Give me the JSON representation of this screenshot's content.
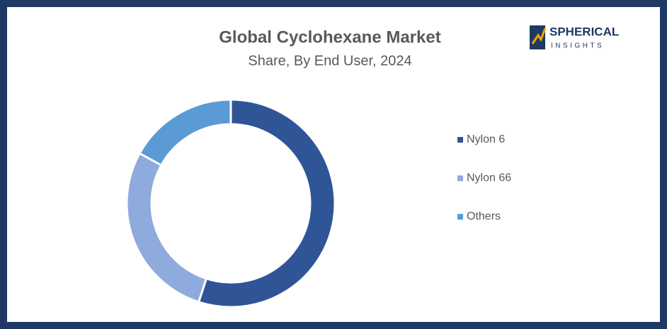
{
  "chart_data": {
    "type": "donut",
    "title": "Global Cyclohexane Market",
    "subtitle": "Share, By End User, 2024",
    "categories": [
      "Nylon 6",
      "Nylon 66",
      "Others"
    ],
    "values": [
      55,
      28,
      17
    ],
    "colors": [
      "#2f5597",
      "#8faadc",
      "#5b9bd5"
    ],
    "legend": "right"
  },
  "logo": {
    "name": "SPHERICAL",
    "tagline": "INSIGHTS"
  }
}
